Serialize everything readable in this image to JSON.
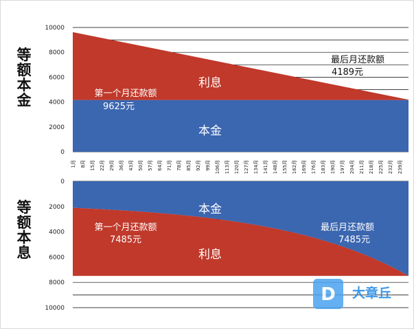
{
  "chart_data": [
    {
      "type": "area",
      "side_label": "等额本金",
      "ylim": [
        0,
        10000
      ],
      "yticks": [
        "0",
        "2000",
        "4000",
        "6000",
        "8000",
        "10000"
      ],
      "months": [
        1,
        240
      ],
      "series": [
        {
          "name": "本金",
          "color": "#3b66b0",
          "values": [
            4167,
            4167
          ]
        },
        {
          "name": "利息",
          "color": "#c0392b",
          "values": [
            5458,
            22
          ]
        }
      ],
      "annotations": {
        "first_label": "第一个月还款额",
        "first_value": "9625元",
        "last_label": "最后月还款额",
        "last_value": "4189元"
      }
    },
    {
      "type": "area",
      "side_label": "等额本息",
      "ylim": [
        0,
        10000
      ],
      "y_inverted": true,
      "yticks": [
        "0",
        "2000",
        "4000",
        "6000",
        "8000",
        "10000"
      ],
      "months": [
        1,
        240
      ],
      "series": [
        {
          "name": "本金",
          "color": "#3b66b0",
          "values": [
            2100,
            7485
          ]
        },
        {
          "name": "利息",
          "color": "#c0392b",
          "values": [
            5385,
            0
          ]
        }
      ],
      "total": 7485,
      "annotations": {
        "first_label": "第一个月还款额",
        "first_value": "7485元",
        "last_label": "最后月还款额",
        "last_value": "7485元"
      }
    }
  ],
  "x_tick_labels": [
    "1月",
    "8月",
    "15月",
    "22月",
    "29月",
    "36月",
    "43月",
    "50月",
    "57月",
    "64月",
    "71月",
    "78月",
    "85月",
    "92月",
    "99月",
    "106月",
    "113月",
    "120月",
    "127月",
    "134月",
    "141月",
    "148月",
    "155月",
    "162月",
    "169月",
    "176月",
    "183月",
    "190月",
    "197月",
    "204月",
    "211月",
    "218月",
    "225月",
    "232月",
    "239月"
  ],
  "watermark": {
    "glyph": "D",
    "text": "大章丘"
  }
}
